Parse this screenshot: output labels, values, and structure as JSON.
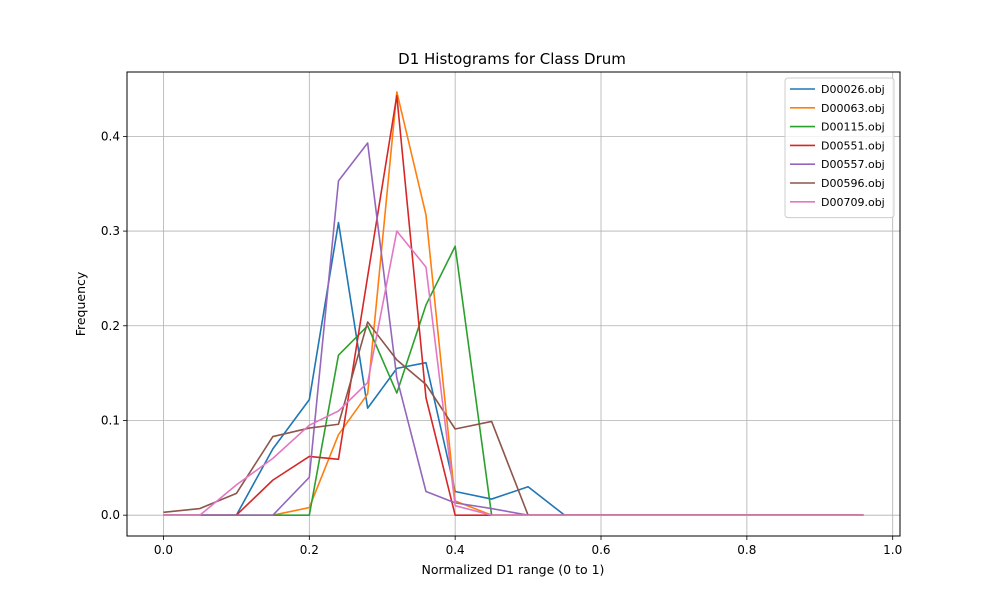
{
  "chart_data": {
    "type": "line",
    "title": "D1 Histograms for Class Drum",
    "xlabel": "Normalized D1 range (0 to 1)",
    "ylabel": "Frequency",
    "xlim": [
      -0.05,
      1.01
    ],
    "ylim": [
      -0.022,
      0.468
    ],
    "xticks": [
      0.0,
      0.2,
      0.4,
      0.6,
      0.8,
      1.0
    ],
    "xtick_labels": [
      "0.0",
      "0.2",
      "0.4",
      "0.6",
      "0.8",
      "1.0"
    ],
    "yticks": [
      0.0,
      0.1,
      0.2,
      0.3,
      0.4
    ],
    "ytick_labels": [
      "0.0",
      "0.1",
      "0.2",
      "0.3",
      "0.4"
    ],
    "grid": true,
    "legend_position": "top-right",
    "x": [
      0.0,
      0.05,
      0.1,
      0.15,
      0.2,
      0.24,
      0.28,
      0.32,
      0.36,
      0.4,
      0.45,
      0.5,
      0.55,
      0.6,
      0.65,
      0.7,
      0.75,
      0.8,
      0.85,
      0.9,
      0.96
    ],
    "series": [
      {
        "name": "D00026.obj",
        "color": "#1f77b4",
        "values": [
          0,
          0,
          0,
          0.07,
          0.122,
          0.309,
          0.113,
          0.155,
          0.161,
          0.025,
          0.017,
          0.03,
          0,
          0,
          0,
          0,
          0,
          0,
          0,
          0,
          0
        ]
      },
      {
        "name": "D00063.obj",
        "color": "#ff7f0e",
        "values": [
          0,
          0,
          0,
          0,
          0.008,
          0.085,
          0.128,
          0.447,
          0.317,
          0.015,
          0,
          0,
          0,
          0,
          0,
          0,
          0,
          0,
          0,
          0,
          0
        ]
      },
      {
        "name": "D00115.obj",
        "color": "#2ca02c",
        "values": [
          0,
          0,
          0,
          0,
          0,
          0.169,
          0.2,
          0.129,
          0.222,
          0.284,
          0,
          0,
          0,
          0,
          0,
          0,
          0,
          0,
          0,
          0,
          0
        ]
      },
      {
        "name": "D00551.obj",
        "color": "#d62728",
        "values": [
          0,
          0,
          0,
          0.037,
          0.062,
          0.059,
          0.252,
          0.443,
          0.124,
          0,
          0,
          0,
          0,
          0,
          0,
          0,
          0,
          0,
          0,
          0,
          0
        ]
      },
      {
        "name": "D00557.obj",
        "color": "#9467bd",
        "values": [
          0,
          0,
          0,
          0,
          0.04,
          0.353,
          0.393,
          0.145,
          0.025,
          0.013,
          0.007,
          0,
          0,
          0,
          0,
          0,
          0,
          0,
          0,
          0,
          0
        ]
      },
      {
        "name": "D00596.obj",
        "color": "#8c564b",
        "values": [
          0.003,
          0.007,
          0.023,
          0.083,
          0.092,
          0.096,
          0.204,
          0.164,
          0.138,
          0.091,
          0.099,
          0,
          0,
          0,
          0,
          0,
          0,
          0,
          0,
          0,
          0
        ]
      },
      {
        "name": "D00709.obj",
        "color": "#e377c2",
        "values": [
          0,
          0,
          0.032,
          0.06,
          0.095,
          0.11,
          0.14,
          0.3,
          0.262,
          0.01,
          0,
          0,
          0,
          0,
          0,
          0,
          0,
          0,
          0,
          0,
          0
        ]
      }
    ]
  }
}
